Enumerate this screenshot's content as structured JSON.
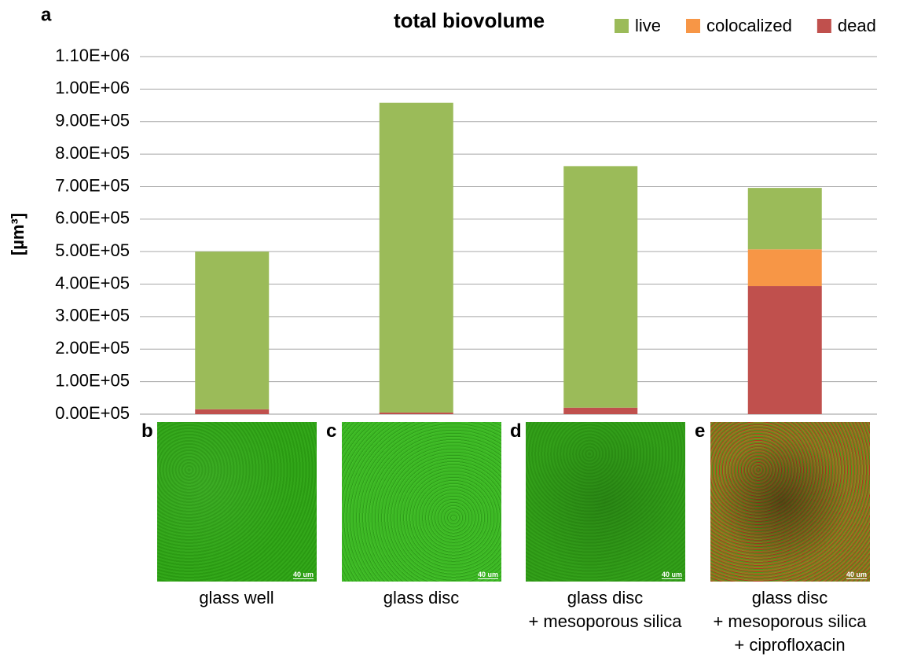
{
  "chart_data": {
    "type": "stacked_bar",
    "title": "total biovolume",
    "ylabel": "[µm³]",
    "categories": [
      "glass well",
      "glass disc",
      "glass disc\n+ mesoporous silica",
      "glass disc\n+ mesoporous silica\n+ ciprofloxacin"
    ],
    "series": [
      {
        "name": "live",
        "color": "#9bbb59",
        "values": [
          485000,
          953000,
          743000,
          189000
        ]
      },
      {
        "name": "colocalized",
        "color": "#f79646",
        "values": [
          0,
          0,
          0,
          113000
        ]
      },
      {
        "name": "dead",
        "color": "#c0504d",
        "values": [
          15000,
          5000,
          20000,
          394000
        ]
      }
    ],
    "ylim": [
      0,
      1100000
    ],
    "yticks": [
      {
        "value": 0,
        "label": "0.00E+05"
      },
      {
        "value": 100000,
        "label": "1.00E+05"
      },
      {
        "value": 200000,
        "label": "2.00E+05"
      },
      {
        "value": 300000,
        "label": "3.00E+05"
      },
      {
        "value": 400000,
        "label": "4.00E+05"
      },
      {
        "value": 500000,
        "label": "5.00E+05"
      },
      {
        "value": 600000,
        "label": "6.00E+05"
      },
      {
        "value": 700000,
        "label": "7.00E+05"
      },
      {
        "value": 800000,
        "label": "8.00E+05"
      },
      {
        "value": 900000,
        "label": "9.00E+05"
      },
      {
        "value": 1000000,
        "label": "1.00E+06"
      },
      {
        "value": 1100000,
        "label": "1.10E+06"
      }
    ],
    "grid": true,
    "legend": "top-right",
    "stack_order": "bottom-up-from-last"
  },
  "panel_label": "a",
  "panels": [
    {
      "label": "b",
      "scale_bar": "40 um",
      "stain": "green"
    },
    {
      "label": "c",
      "scale_bar": "40 um",
      "stain": "bright-green"
    },
    {
      "label": "d",
      "scale_bar": "40 um",
      "stain": "dark-green"
    },
    {
      "label": "e",
      "scale_bar": "40 um",
      "stain": "mixed"
    }
  ]
}
